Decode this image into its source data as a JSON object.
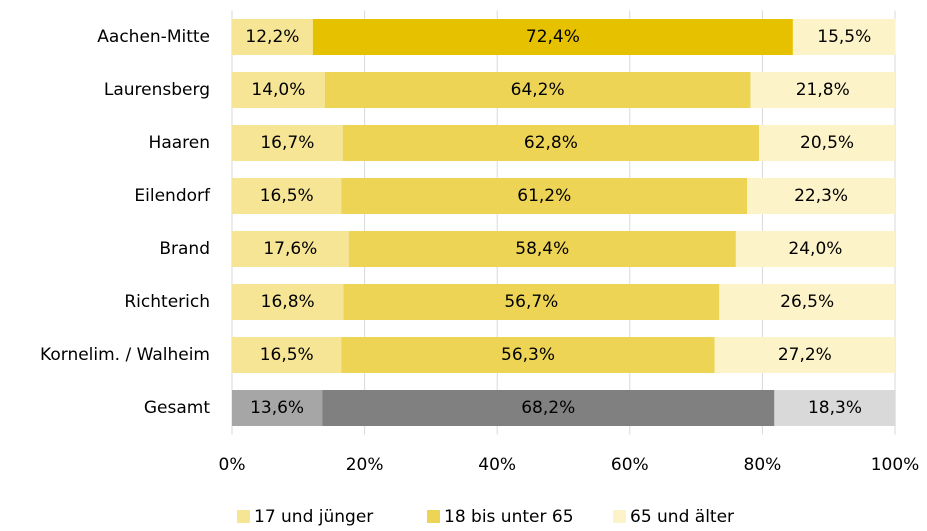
{
  "chart_data": {
    "type": "stacked-barh",
    "categories": [
      "Aachen-Mitte",
      "Laurensberg",
      "Haaren",
      "Eilendorf",
      "Brand",
      "Richterich",
      "Kornelim. / Walheim",
      "Gesamt"
    ],
    "series": [
      {
        "name": "17 und jünger",
        "color": "#f5e595",
        "colors": [
          "#f5e595",
          "#f5e595",
          "#f5e595",
          "#f5e595",
          "#f5e595",
          "#f5e595",
          "#f5e595",
          "#a6a6a6"
        ],
        "values": [
          12.2,
          14.0,
          16.7,
          16.5,
          17.6,
          16.8,
          16.5,
          13.6
        ],
        "value_labels": [
          "12,2%",
          "14,0%",
          "16,7%",
          "16,5%",
          "17,6%",
          "16,8%",
          "16,5%",
          "13,6%"
        ]
      },
      {
        "name": "18 bis unter 65",
        "color": "#edd455",
        "colors": [
          "#e5c100",
          "#edd455",
          "#edd455",
          "#edd455",
          "#edd455",
          "#edd455",
          "#edd455",
          "#808080"
        ],
        "values": [
          72.4,
          64.2,
          62.8,
          61.2,
          58.4,
          56.7,
          56.3,
          68.2
        ],
        "value_labels": [
          "72,4%",
          "64,2%",
          "62,8%",
          "61,2%",
          "58,4%",
          "56,7%",
          "56,3%",
          "68,2%"
        ]
      },
      {
        "name": "65 und älter",
        "color": "#fcf3c9",
        "colors": [
          "#fcf3c9",
          "#fcf3c9",
          "#fcf3c9",
          "#fcf3c9",
          "#fcf3c9",
          "#fcf3c9",
          "#fcf3c9",
          "#d9d9d9"
        ],
        "values": [
          15.5,
          21.8,
          20.5,
          22.3,
          24.0,
          26.5,
          27.2,
          18.3
        ],
        "value_labels": [
          "15,5%",
          "21,8%",
          "20,5%",
          "22,3%",
          "24,0%",
          "26,5%",
          "27,2%",
          "18,3%"
        ]
      }
    ],
    "xlim": [
      0,
      100
    ],
    "xticks": [
      {
        "value": 0,
        "label": "0%"
      },
      {
        "value": 20,
        "label": "20%"
      },
      {
        "value": 40,
        "label": "40%"
      },
      {
        "value": 60,
        "label": "60%"
      },
      {
        "value": 80,
        "label": "80%"
      },
      {
        "value": 100,
        "label": "100%"
      }
    ],
    "grid": true,
    "legend": "bottom"
  }
}
